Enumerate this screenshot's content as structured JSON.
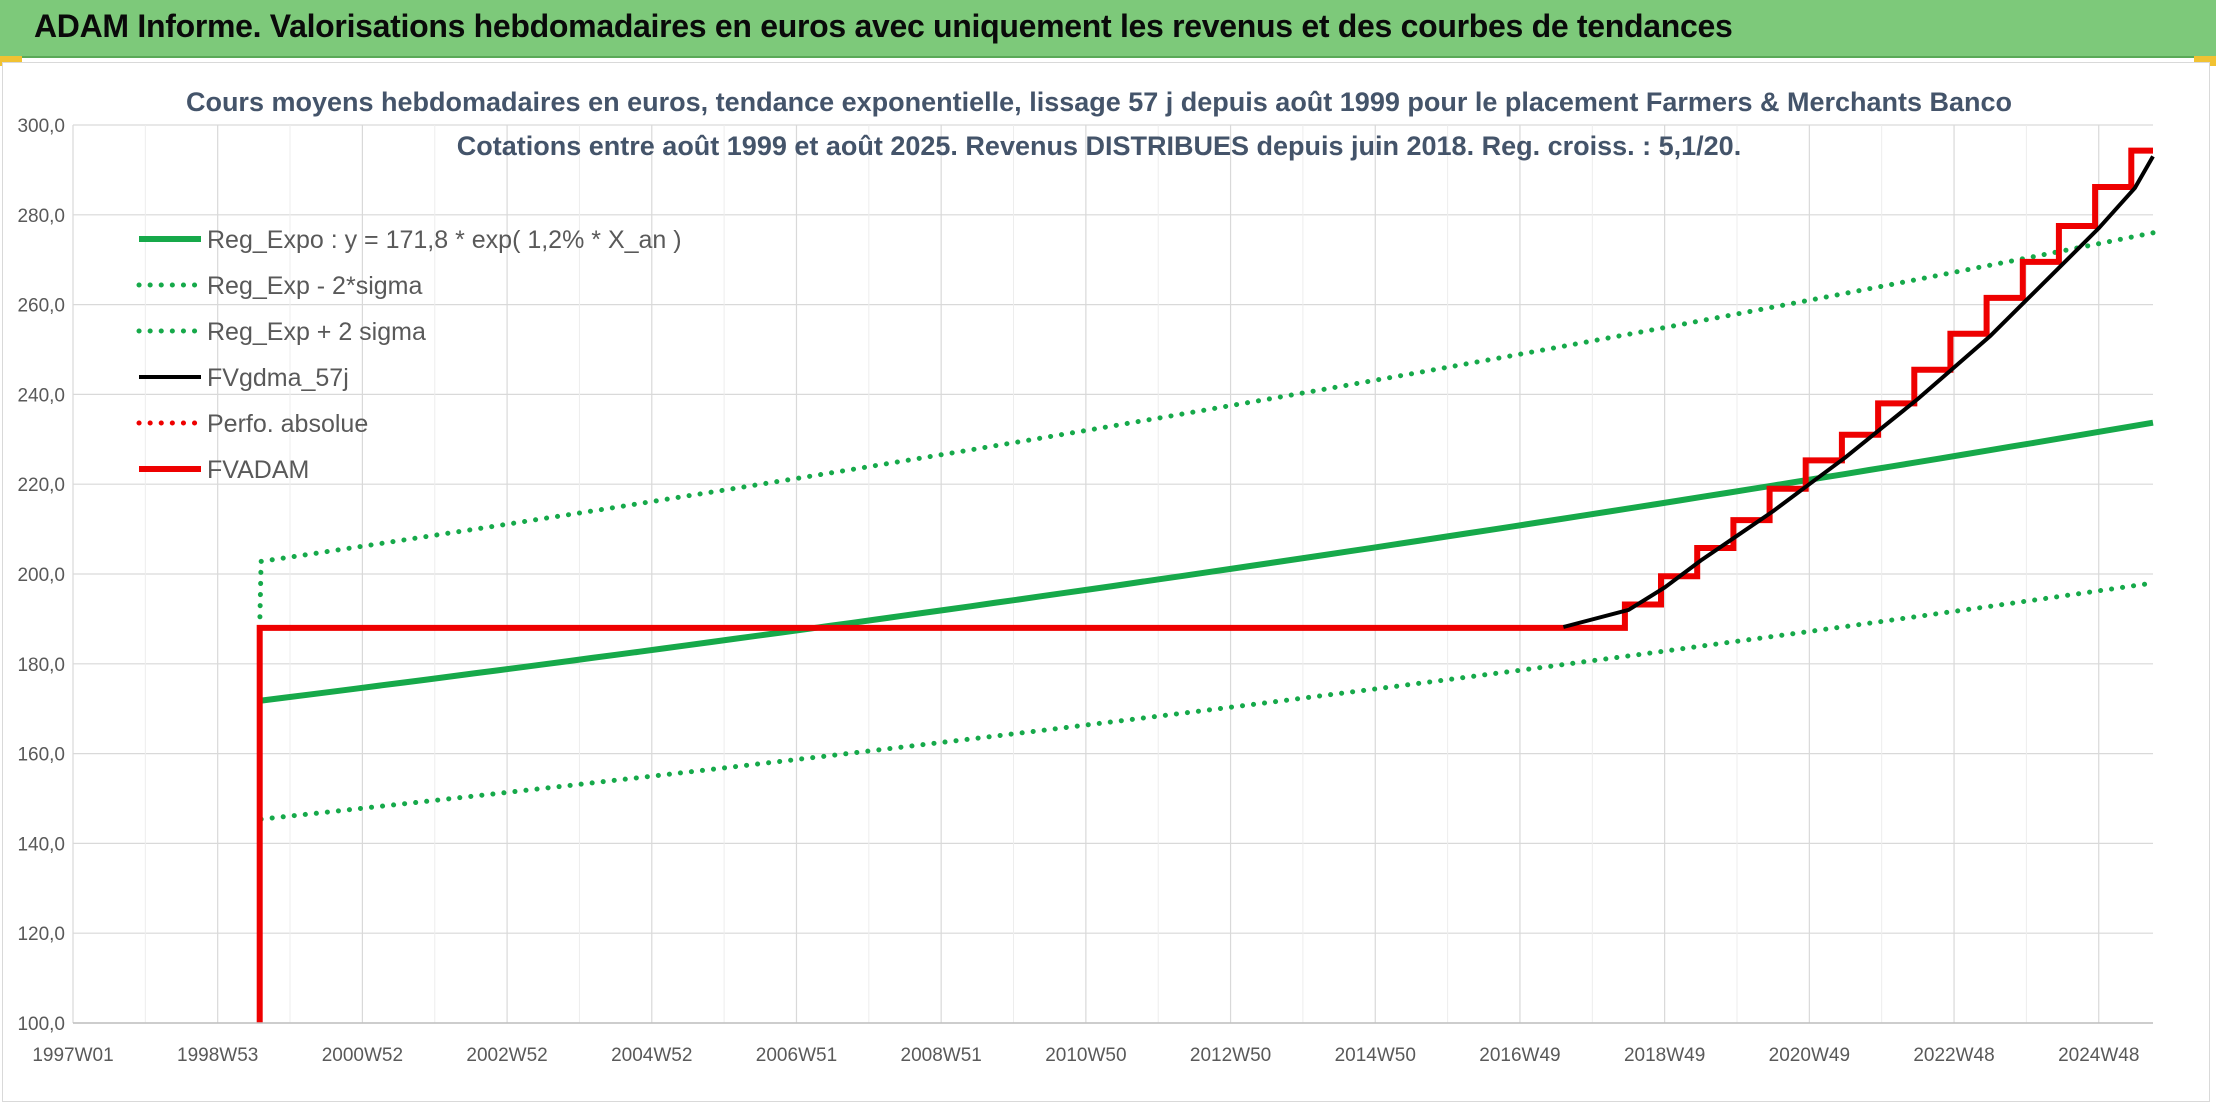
{
  "banner": {
    "title": "ADAM Informe. Valorisations hebdomadaires en euros avec uniquement les revenus et des courbes de tendances"
  },
  "colors": {
    "banner_bg": "#7dc97a",
    "green": "#16a94a",
    "red": "#ee0000",
    "black": "#000000",
    "grid": "#d9d9d9",
    "title": "#44546a",
    "axis_text": "#595959"
  },
  "chart_data": {
    "type": "line",
    "title": "Cours moyens hebdomadaires en euros, tendance exponentielle, lissage 57 j depuis août 1999 pour le placement Farmers & Merchants Banco",
    "subtitle": "Cotations entre août 1999 et août 2025. Revenus DISTRIBUES depuis juin 2018. Reg. croiss. : 5,1/20.",
    "xlabel": "",
    "ylabel": "",
    "ylim": [
      100,
      300
    ],
    "yticks": [
      "100,0",
      "120,0",
      "140,0",
      "160,0",
      "180,0",
      "200,0",
      "220,0",
      "240,0",
      "260,0",
      "280,0",
      "300,0"
    ],
    "xticks": [
      "1997W01",
      "1998W53",
      "2000W52",
      "2002W52",
      "2004W52",
      "2006W51",
      "2008W51",
      "2010W50",
      "2012W50",
      "2014W50",
      "2016W49",
      "2018W49",
      "2020W49",
      "2022W48",
      "2024W48"
    ],
    "xlim": [
      1997.0,
      2025.75
    ],
    "grid": true,
    "legend_position": "top-left",
    "series": [
      {
        "name": "Reg_Expo : y = 171,8 * exp( 1,2% *  X_an )",
        "style": "solid-thick",
        "color": "#16a94a",
        "x": [
          1999.6,
          2025.75
        ],
        "y": [
          171.8,
          233.7
        ],
        "curve": "exponential"
      },
      {
        "name": "Reg_Exp - 2*sigma",
        "style": "dotted",
        "color": "#16a94a",
        "x": [
          1999.6,
          2025.75
        ],
        "y": [
          145.4,
          198.0
        ],
        "curve": "exponential"
      },
      {
        "name": "Reg_Exp + 2 sigma",
        "style": "dotted",
        "color": "#16a94a",
        "x": [
          1999.58,
          1999.6,
          2025.75
        ],
        "y": [
          188.0,
          202.8,
          276.0
        ],
        "curve": "exponential"
      },
      {
        "name": "FVgdma_57j",
        "style": "solid",
        "color": "#000000",
        "x": [
          2017.6,
          2018.5,
          2019.0,
          2019.5,
          2020.0,
          2020.5,
          2021.0,
          2021.5,
          2022.0,
          2022.5,
          2023.0,
          2023.5,
          2024.0,
          2024.5,
          2025.0,
          2025.5,
          2025.75
        ],
        "y": [
          188.2,
          192.0,
          197.0,
          203.0,
          208.5,
          214.0,
          220.0,
          226.0,
          232.5,
          239.0,
          246.0,
          253.0,
          261.0,
          269.0,
          277.0,
          286.0,
          293.0
        ]
      },
      {
        "name": "Perfo. absolue",
        "style": "dotted",
        "color": "#ee0000",
        "x": [],
        "y": []
      },
      {
        "name": "FVADAM",
        "style": "solid-thick",
        "color": "#ee0000",
        "x": [
          1999.58,
          1999.58,
          2017.95,
          2018.45,
          2018.45,
          2018.95,
          2018.95,
          2019.45,
          2019.45,
          2019.95,
          2019.95,
          2020.45,
          2020.45,
          2020.95,
          2020.95,
          2021.45,
          2021.45,
          2021.95,
          2021.95,
          2022.45,
          2022.45,
          2022.95,
          2022.95,
          2023.45,
          2023.45,
          2023.95,
          2023.95,
          2024.45,
          2024.45,
          2024.95,
          2024.95,
          2025.45,
          2025.45,
          2025.75
        ],
        "y": [
          100.0,
          188.0,
          188.0,
          188.0,
          193.2,
          193.2,
          199.5,
          199.5,
          205.8,
          205.8,
          212.0,
          212.0,
          219.0,
          219.0,
          225.3,
          225.3,
          231.0,
          231.0,
          238.0,
          238.0,
          245.5,
          245.5,
          253.5,
          253.5,
          261.5,
          261.5,
          269.5,
          269.5,
          277.5,
          277.5,
          286.2,
          286.2,
          294.3,
          294.3
        ]
      }
    ]
  }
}
